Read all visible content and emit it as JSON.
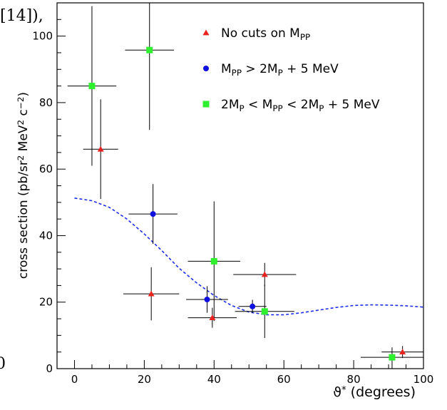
{
  "fragments": {
    "top": "[14]),",
    "bottom": "0"
  },
  "chart_data": {
    "type": "scatter",
    "xlabel": {
      "main": "ϑ*",
      "unit": "(degrees)"
    },
    "ylabel": {
      "pre": "cross section (pb/sr",
      "pow": "2",
      "mid": " MeV",
      "pow2": "2",
      "mid2": " c",
      "pow3": "−2",
      "post": ")"
    },
    "xlim": [
      -5,
      100
    ],
    "ylim": [
      0,
      110
    ],
    "xticks": [
      0,
      20,
      40,
      60,
      80,
      100
    ],
    "yticks": [
      0,
      20,
      40,
      60,
      80,
      100
    ],
    "x_minor_step": 5,
    "y_minor_step": 5,
    "legend_position": "top-right",
    "series": [
      {
        "name": "No cuts on M_PP",
        "legend": {
          "pre": "No cuts on M",
          "sub": "PP",
          "post": ""
        },
        "marker": "triangle",
        "color": "#e8231f",
        "points": [
          {
            "x": 7.5,
            "y": 66,
            "xerr": 5,
            "yerr_lo": 15,
            "yerr_hi": 15
          },
          {
            "x": 22,
            "y": 22.5,
            "xerr": 8,
            "yerr_lo": 8,
            "yerr_hi": 8
          },
          {
            "x": 39.5,
            "y": 15.3,
            "xerr": 7,
            "yerr_lo": 3,
            "yerr_hi": 3
          },
          {
            "x": 54.5,
            "y": 28.3,
            "xerr": 9,
            "yerr_lo": 3.5,
            "yerr_hi": 3.5
          },
          {
            "x": 94,
            "y": 5,
            "xerr": 6,
            "yerr_lo": 1.8,
            "yerr_hi": 1.8
          }
        ]
      },
      {
        "name": "M_PP > 2M_P + 5 MeV",
        "legend": {
          "pre": "M",
          "sub": "PP",
          "post": " > 2M",
          "sub2": "P",
          "post2": " + 5 MeV"
        },
        "marker": "circle",
        "color": "#1010e0",
        "points": [
          {
            "x": 22.5,
            "y": 46.5,
            "xerr": 7,
            "yerr_lo": 9,
            "yerr_hi": 9
          },
          {
            "x": 38,
            "y": 20.8,
            "xerr": 6,
            "yerr_lo": 4,
            "yerr_hi": 4
          },
          {
            "x": 51,
            "y": 18.7,
            "xerr": 4,
            "yerr_lo": 2,
            "yerr_hi": 2
          }
        ]
      },
      {
        "name": "2M_P < M_PP < 2M_P + 5 MeV",
        "legend": {
          "pre": "2M",
          "sub": "P",
          "post": " < M",
          "sub2": "PP",
          "post2": " < 2M",
          "sub3": "P",
          "post3": " + 5 MeV"
        },
        "marker": "square",
        "color": "#2ef02e",
        "points": [
          {
            "x": 5,
            "y": 85,
            "xerr": 7,
            "yerr_lo": 24,
            "yerr_hi": 24
          },
          {
            "x": 21.5,
            "y": 95.8,
            "xerr": 7,
            "yerr_lo": 24,
            "yerr_hi": 24
          },
          {
            "x": 40,
            "y": 32.3,
            "xerr": 7.5,
            "yerr_lo": 18,
            "yerr_hi": 18
          },
          {
            "x": 54.5,
            "y": 17.2,
            "xerr": 8.5,
            "yerr_lo": 8,
            "yerr_hi": 8
          },
          {
            "x": 91,
            "y": 3.4,
            "xerr": 9,
            "yerr_lo": 3.5,
            "yerr_hi": 3
          }
        ]
      }
    ],
    "curve": {
      "style": "dashed",
      "color": "#1c2ee8",
      "x": [
        0,
        5,
        10,
        15,
        20,
        25,
        30,
        35,
        40,
        45,
        50,
        55,
        60,
        65,
        70,
        75,
        80,
        85,
        90,
        95,
        100
      ],
      "y": [
        51.3,
        50.5,
        48.5,
        45,
        40.5,
        35.5,
        30.2,
        25.8,
        22,
        19,
        17,
        16.2,
        16.2,
        16.8,
        17.6,
        18.4,
        19,
        19.2,
        19.1,
        18.9,
        18.5
      ]
    }
  }
}
